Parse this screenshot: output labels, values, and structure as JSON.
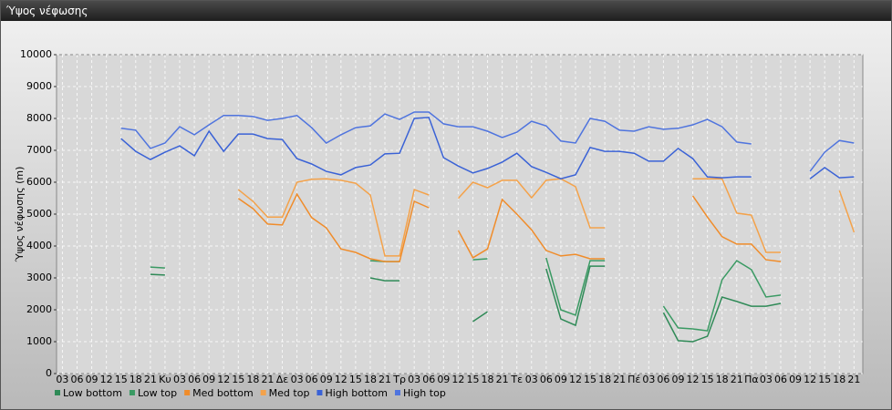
{
  "chart_data": {
    "type": "line",
    "title": "Ύψος νέφωσης",
    "ylabel": "Ύψος νέφωσης (m)",
    "categories": [
      "03",
      "06",
      "09",
      "12",
      "15",
      "18",
      "21",
      "Κυ",
      "03",
      "06",
      "09",
      "12",
      "15",
      "18",
      "21",
      "Δε",
      "03",
      "06",
      "09",
      "12",
      "15",
      "18",
      "21",
      "Τρ",
      "03",
      "06",
      "09",
      "12",
      "15",
      "18",
      "21",
      "Τε",
      "03",
      "06",
      "09",
      "12",
      "15",
      "18",
      "21",
      "Πέ",
      "03",
      "06",
      "09",
      "12",
      "15",
      "18",
      "21",
      "Πα",
      "03",
      "06",
      "09",
      "12",
      "15",
      "18",
      "21"
    ],
    "ylim": [
      0,
      10000
    ],
    "yticks": [
      0,
      1000,
      2000,
      3000,
      4000,
      5000,
      6000,
      7000,
      8000,
      9000,
      10000
    ],
    "grid": true,
    "series": [
      {
        "name": "Low bottom",
        "color": "#2f8a57",
        "values": [
          null,
          null,
          null,
          null,
          null,
          null,
          3110,
          3090,
          null,
          null,
          null,
          null,
          null,
          null,
          null,
          null,
          null,
          null,
          null,
          null,
          null,
          3000,
          2910,
          2910,
          null,
          null,
          null,
          null,
          1630,
          1940,
          null,
          null,
          null,
          3290,
          1710,
          1510,
          3370,
          3370,
          null,
          null,
          null,
          1910,
          1030,
          1000,
          1170,
          2400,
          2260,
          2110,
          2110,
          2200,
          null,
          null,
          null,
          null,
          null
        ]
      },
      {
        "name": "Low top",
        "color": "#3a9a63",
        "values": [
          null,
          null,
          null,
          null,
          null,
          null,
          3340,
          3310,
          null,
          null,
          null,
          null,
          null,
          null,
          null,
          null,
          null,
          null,
          null,
          null,
          null,
          3540,
          3510,
          3510,
          null,
          null,
          null,
          null,
          3570,
          3600,
          null,
          null,
          null,
          3630,
          2000,
          1830,
          3540,
          3540,
          null,
          null,
          null,
          2110,
          1430,
          1400,
          1340,
          2940,
          3540,
          3260,
          2400,
          2460,
          null,
          null,
          null,
          null,
          null
        ]
      },
      {
        "name": "Med bottom",
        "color": "#f08c2a",
        "values": [
          null,
          null,
          null,
          null,
          null,
          null,
          null,
          null,
          null,
          null,
          null,
          null,
          5490,
          5170,
          4690,
          4660,
          5630,
          4890,
          4570,
          3910,
          3800,
          3600,
          3510,
          3510,
          5400,
          5200,
          null,
          4490,
          3630,
          3910,
          5460,
          5000,
          4510,
          3860,
          3690,
          3740,
          3600,
          3600,
          null,
          null,
          null,
          null,
          null,
          5570,
          4910,
          4290,
          4060,
          4060,
          3570,
          3510,
          null,
          null,
          null,
          null,
          null
        ]
      },
      {
        "name": "Med top",
        "color": "#f4a24a",
        "values": [
          null,
          null,
          null,
          null,
          null,
          null,
          null,
          null,
          null,
          null,
          null,
          null,
          5770,
          5400,
          4910,
          4910,
          6000,
          6090,
          6110,
          6060,
          5970,
          5600,
          3690,
          3690,
          5770,
          5600,
          null,
          5490,
          6000,
          5830,
          6060,
          6060,
          5510,
          6060,
          6110,
          5860,
          4570,
          4570,
          null,
          null,
          null,
          null,
          null,
          6110,
          6110,
          6110,
          5030,
          4970,
          3800,
          3800,
          null,
          null,
          null,
          5740,
          4430
        ]
      },
      {
        "name": "High bottom",
        "color": "#3a62d6",
        "values": [
          null,
          null,
          null,
          null,
          7370,
          6970,
          6710,
          6940,
          7140,
          6830,
          7600,
          6970,
          7510,
          7510,
          7370,
          7340,
          6740,
          6570,
          6340,
          6230,
          6460,
          6540,
          6890,
          6910,
          8000,
          8030,
          6770,
          6510,
          6290,
          6430,
          6630,
          6910,
          6490,
          6310,
          6110,
          6230,
          7090,
          6970,
          6970,
          6910,
          6660,
          6660,
          7060,
          6740,
          6170,
          6140,
          6170,
          6170,
          null,
          null,
          null,
          6110,
          6460,
          6140,
          6170
        ]
      },
      {
        "name": "High top",
        "color": "#4f74de",
        "values": [
          null,
          null,
          null,
          null,
          7690,
          7630,
          7060,
          7230,
          7740,
          7490,
          7800,
          8090,
          8090,
          8060,
          7940,
          8000,
          8090,
          7710,
          7230,
          7490,
          7710,
          7770,
          8140,
          7970,
          8200,
          8200,
          7830,
          7740,
          7740,
          7600,
          7400,
          7570,
          7910,
          7770,
          7290,
          7230,
          8000,
          7910,
          7630,
          7600,
          7740,
          7660,
          7690,
          7800,
          7970,
          7740,
          7260,
          7200,
          null,
          null,
          null,
          6340,
          6940,
          7310,
          7230
        ]
      }
    ]
  }
}
